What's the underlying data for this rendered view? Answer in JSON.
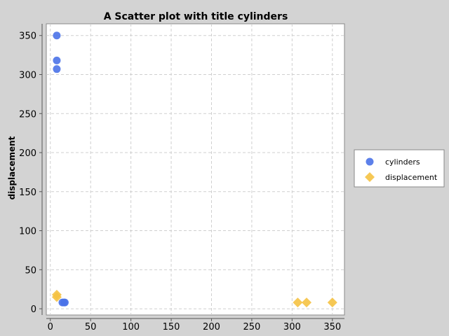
{
  "chart_data": {
    "type": "scatter",
    "title": "A Scatter plot with title cylinders",
    "xlabel": "",
    "ylabel": "displacement",
    "xlim": [
      -5,
      365
    ],
    "ylim": [
      -8,
      365
    ],
    "xticks": [
      0,
      50,
      100,
      150,
      200,
      250,
      300,
      350
    ],
    "yticks": [
      0,
      50,
      100,
      150,
      200,
      250,
      300,
      350
    ],
    "grid": true,
    "legend_position": "right",
    "series": [
      {
        "name": "cylinders",
        "marker": "circle",
        "color": "#4a72e8",
        "points": [
          [
            8,
            350
          ],
          [
            8,
            318
          ],
          [
            8,
            307
          ],
          [
            15,
            8
          ],
          [
            17,
            8
          ],
          [
            18,
            8
          ]
        ]
      },
      {
        "name": "displacement",
        "marker": "diamond",
        "color": "#f5c242",
        "points": [
          [
            8,
            18
          ],
          [
            8,
            15
          ],
          [
            307,
            8
          ],
          [
            318,
            8
          ],
          [
            350,
            8
          ]
        ]
      }
    ]
  }
}
